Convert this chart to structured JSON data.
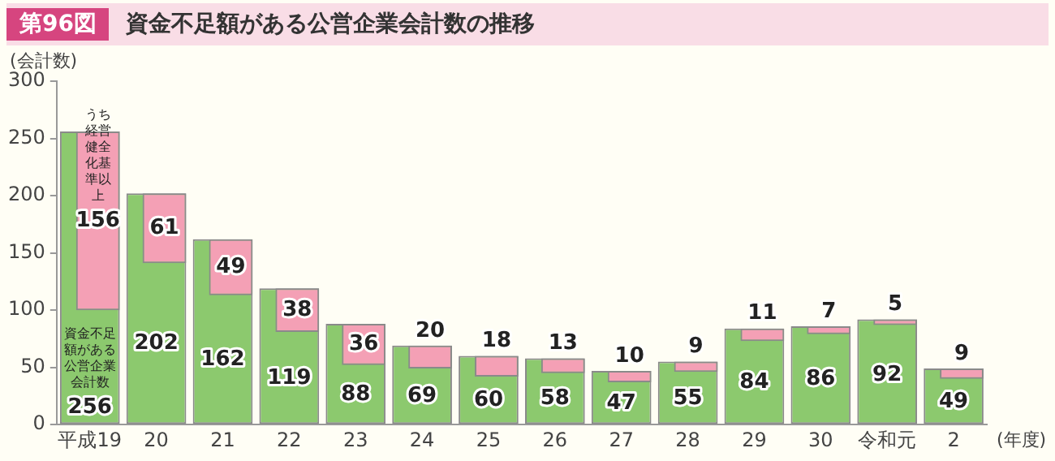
{
  "chart_data": {
    "type": "bar",
    "title": "第96図 資金不足額がある公営企業会計数の推移",
    "ylabel": "(会計数)",
    "xlabel": "(年度)",
    "categories": [
      "平成19",
      "20",
      "21",
      "22",
      "23",
      "24",
      "25",
      "26",
      "27",
      "28",
      "29",
      "30",
      "令和元",
      "2"
    ],
    "series": [
      {
        "name": "資金不足額がある公営企業会計数",
        "color": "#8cc96e",
        "values": [
          256,
          202,
          162,
          119,
          88,
          69,
          60,
          58,
          47,
          55,
          84,
          86,
          92,
          49
        ]
      },
      {
        "name": "うち経営健全化基準以上",
        "color": "#f4a0b5",
        "values": [
          156,
          61,
          49,
          38,
          36,
          20,
          18,
          13,
          10,
          9,
          11,
          7,
          5,
          9
        ],
        "base": [
          100,
          141,
          113,
          81,
          52,
          49,
          42,
          45,
          37,
          46,
          73,
          79,
          87,
          40
        ]
      }
    ],
    "ylim": [
      0,
      300
    ],
    "yticks": [
      0,
      50,
      100,
      150,
      200,
      250,
      300
    ],
    "grid": false,
    "legend": false,
    "data_labels": true
  }
}
